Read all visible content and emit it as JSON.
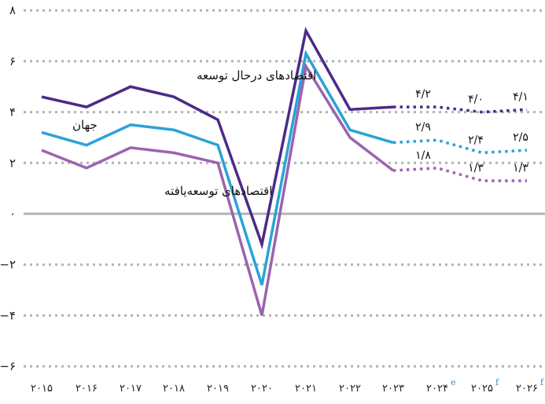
{
  "chart_data": {
    "type": "line",
    "title": "",
    "xlabel": "",
    "ylabel": "",
    "ylim": [
      -6,
      8
    ],
    "yticks": [
      8,
      6,
      4,
      2,
      0,
      -2,
      -4,
      -6
    ],
    "ytick_labels": [
      "۸",
      "۶",
      "۴",
      "۲",
      "۰",
      "−۲",
      "−۴",
      "−۶"
    ],
    "categories": [
      "2015",
      "2016",
      "2017",
      "2018",
      "2019",
      "2020",
      "2021",
      "2022",
      "2023",
      "2024",
      "2025",
      "2026"
    ],
    "category_labels": [
      "۲۰۱۵",
      "۲۰۱۶",
      "۲۰۱۷",
      "۲۰۱۸",
      "۲۰۱۹",
      "۲۰۲۰",
      "۲۰۲۱",
      "۲۰۲۲",
      "۲۰۲۳",
      "۲۰۲۴",
      "۲۰۲۵",
      "۲۰۲۶"
    ],
    "category_superscripts": [
      "",
      "",
      "",
      "",
      "",
      "",
      "",
      "",
      "",
      "e",
      "f",
      "f"
    ],
    "grid": "horizontal-dotted",
    "zero_line": true,
    "forecast_start_index": 9,
    "series": [
      {
        "name": "اقتصادهای درحال توسعه",
        "color": "#4b2a87",
        "values": [
          4.6,
          4.2,
          5.0,
          4.6,
          3.7,
          -1.2,
          7.2,
          4.1,
          4.2,
          4.2,
          4.0,
          4.1
        ],
        "end_labels": {
          "2024": "۴/۲",
          "2025": "۴/۰",
          "2026": "۴/۱"
        }
      },
      {
        "name": "جهان",
        "color": "#2aa3d6",
        "values": [
          3.2,
          2.7,
          3.5,
          3.3,
          2.7,
          -2.8,
          6.3,
          3.3,
          2.8,
          2.9,
          2.4,
          2.5
        ],
        "end_labels": {
          "2024": "۲/۹",
          "2025": "۲/۴",
          "2026": "۲/۵"
        }
      },
      {
        "name": "اقتصادهای توسعه‌یافته",
        "color": "#9a64b0",
        "values": [
          2.5,
          1.8,
          2.6,
          2.4,
          2.0,
          -4.0,
          5.8,
          3.0,
          1.7,
          1.8,
          1.3,
          1.3
        ],
        "end_labels": {
          "2024": "۱/۸",
          "2025": "۱/۳",
          "2026": "۱/۳"
        }
      }
    ],
    "legend_position": "inline-left"
  },
  "labels": {
    "developing": "اقتصادهای درحال توسعه",
    "world": "جهان",
    "advanced": "اقتصادهای توسعه‌یافته"
  },
  "colors": {
    "grid": "#b3b3b3",
    "zero_line": "#b3b3b3",
    "superscript": "#3a8fc4"
  }
}
